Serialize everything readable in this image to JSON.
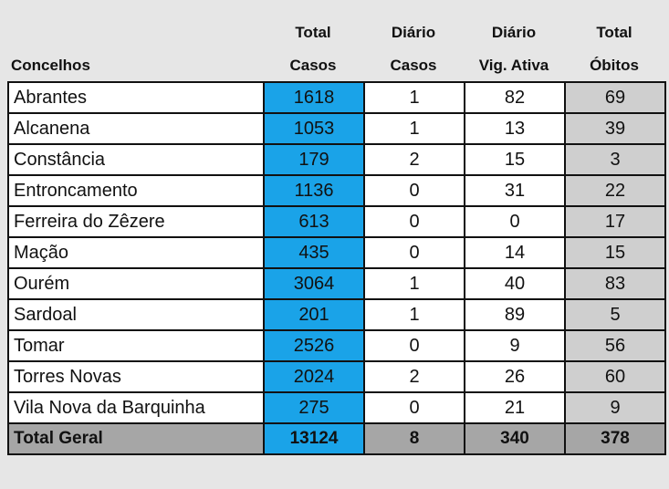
{
  "headers": {
    "concelhos": "Concelhos",
    "total_casos": [
      "Total",
      "Casos"
    ],
    "diario_casos": [
      "Diário",
      "Casos"
    ],
    "diario_vig": [
      "Diário",
      "Vig. Ativa"
    ],
    "total_obitos": [
      "Total",
      "Óbitos"
    ]
  },
  "rows": [
    {
      "concelho": "Abrantes",
      "total_casos": "1618",
      "diario_casos": "1",
      "vig_ativa": "82",
      "obitos": "69"
    },
    {
      "concelho": "Alcanena",
      "total_casos": "1053",
      "diario_casos": "1",
      "vig_ativa": "13",
      "obitos": "39"
    },
    {
      "concelho": "Constância",
      "total_casos": "179",
      "diario_casos": "2",
      "vig_ativa": "15",
      "obitos": "3"
    },
    {
      "concelho": "Entroncamento",
      "total_casos": "1136",
      "diario_casos": "0",
      "vig_ativa": "31",
      "obitos": "22"
    },
    {
      "concelho": "Ferreira do Zêzere",
      "total_casos": "613",
      "diario_casos": "0",
      "vig_ativa": "0",
      "obitos": "17"
    },
    {
      "concelho": "Mação",
      "total_casos": "435",
      "diario_casos": "0",
      "vig_ativa": "14",
      "obitos": "15"
    },
    {
      "concelho": "Ourém",
      "total_casos": "3064",
      "diario_casos": "1",
      "vig_ativa": "40",
      "obitos": "83"
    },
    {
      "concelho": "Sardoal",
      "total_casos": "201",
      "diario_casos": "1",
      "vig_ativa": "89",
      "obitos": "5"
    },
    {
      "concelho": "Tomar",
      "total_casos": "2526",
      "diario_casos": "0",
      "vig_ativa": "9",
      "obitos": "56"
    },
    {
      "concelho": "Torres Novas",
      "total_casos": "2024",
      "diario_casos": "2",
      "vig_ativa": "26",
      "obitos": "60"
    },
    {
      "concelho": "Vila Nova da Barquinha",
      "total_casos": "275",
      "diario_casos": "0",
      "vig_ativa": "21",
      "obitos": "9"
    }
  ],
  "total": {
    "label": "Total Geral",
    "total_casos": "13124",
    "diario_casos": "8",
    "vig_ativa": "340",
    "obitos": "378"
  },
  "colors": {
    "casos": "#1aa3e8",
    "obitos": "#cfcfcf",
    "total_row": "#a6a6a6",
    "background": "#e6e6e6"
  }
}
